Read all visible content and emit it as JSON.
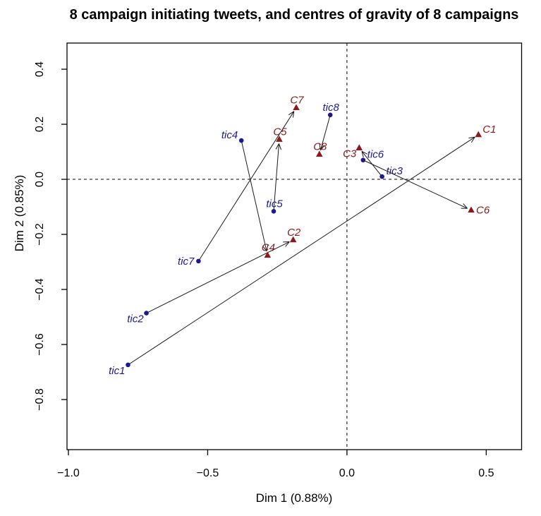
{
  "chart_data": {
    "type": "scatter",
    "title": "8 campaign initiating tweets, and centres of gravity of 8 campaigns",
    "xlabel": "Dim 1 (0.88%)",
    "ylabel": "Dim 2 (0.85%)",
    "xlim": [
      -1.005,
      0.627
    ],
    "ylim": [
      -0.982,
      0.495
    ],
    "grid": false,
    "zero_lines": "dashed",
    "x_ticks": {
      "values": [
        -1.0,
        -0.5,
        0.0,
        0.5
      ],
      "labels": [
        "−1.0",
        "−0.5",
        "0.0",
        "0.5"
      ]
    },
    "y_ticks": {
      "values": [
        0.4,
        0.2,
        0.0,
        -0.2,
        -0.4,
        -0.6,
        -0.8
      ],
      "labels": [
        "0.4",
        "0.2",
        "0.0",
        "−0.2",
        "−0.4",
        "−0.6",
        "−0.8"
      ]
    },
    "colors": {
      "tweets": "#1a1a8f",
      "centres": "#8b1a1a",
      "lines": "#1a1a1a",
      "axis": "#000000"
    },
    "series": [
      {
        "name": "campaign initiating tweets",
        "marker": "circle",
        "color": "#1a1a8f",
        "points": [
          {
            "id": "tic1",
            "label": "tic1",
            "x": -0.786,
            "y": -0.674,
            "label_pos": "sw"
          },
          {
            "id": "tic2",
            "label": "tic2",
            "x": -0.72,
            "y": -0.486,
            "label_pos": "sw"
          },
          {
            "id": "tic3",
            "label": "tic3",
            "x": 0.126,
            "y": 0.01,
            "label_pos": "ne"
          },
          {
            "id": "tic4",
            "label": "tic4",
            "x": -0.379,
            "y": 0.141,
            "label_pos": "nw"
          },
          {
            "id": "tic5",
            "label": "tic5",
            "x": -0.263,
            "y": -0.116,
            "label_pos": "n"
          },
          {
            "id": "tic6",
            "label": "tic6",
            "x": 0.058,
            "y": 0.07,
            "label_pos": "ne"
          },
          {
            "id": "tic7",
            "label": "tic7",
            "x": -0.533,
            "y": -0.297,
            "label_pos": "w"
          },
          {
            "id": "tic8",
            "label": "tic8",
            "x": -0.06,
            "y": 0.234,
            "label_pos": "n"
          }
        ]
      },
      {
        "name": "centres of gravity of campaigns",
        "marker": "triangle",
        "color": "#8b1a1a",
        "points": [
          {
            "id": "C1",
            "label": "C1",
            "x": 0.472,
            "y": 0.162,
            "label_pos": "ne"
          },
          {
            "id": "C2",
            "label": "C2",
            "x": -0.193,
            "y": -0.22,
            "label_pos": "n"
          },
          {
            "id": "C3",
            "label": "C3",
            "x": 0.044,
            "y": 0.114,
            "label_pos": "sw"
          },
          {
            "id": "C4",
            "label": "C4",
            "x": -0.285,
            "y": -0.276,
            "label_pos": "n"
          },
          {
            "id": "C5",
            "label": "C5",
            "x": -0.243,
            "y": 0.145,
            "label_pos": "n"
          },
          {
            "id": "C6",
            "label": "C6",
            "x": 0.446,
            "y": -0.112,
            "label_pos": "e"
          },
          {
            "id": "C7",
            "label": "C7",
            "x": -0.182,
            "y": 0.26,
            "label_pos": "n"
          },
          {
            "id": "C8",
            "label": "C8",
            "x": -0.099,
            "y": 0.091,
            "label_pos": "n"
          }
        ]
      }
    ],
    "arrows": [
      {
        "from": "tic1",
        "to": "C1"
      },
      {
        "from": "tic2",
        "to": "C2"
      },
      {
        "from": "tic3",
        "to": "C3"
      },
      {
        "from": "tic4",
        "to": "C4"
      },
      {
        "from": "tic5",
        "to": "C5"
      },
      {
        "from": "tic6",
        "to": "C6"
      },
      {
        "from": "tic7",
        "to": "C7"
      },
      {
        "from": "tic8",
        "to": "C8"
      }
    ]
  }
}
